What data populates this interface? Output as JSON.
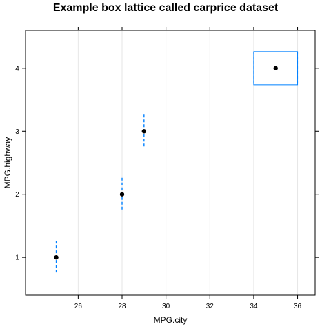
{
  "chart_data": {
    "type": "box",
    "title": "Example box lattice called carprice dataset",
    "xlabel": "MPG.city",
    "ylabel": "MPG.highway",
    "xlim": [
      23.6,
      36.8
    ],
    "ylim": [
      0.4,
      4.6
    ],
    "x_ticks": [
      26,
      28,
      30,
      32,
      34,
      36
    ],
    "y_ticks": [
      1,
      2,
      3,
      4
    ],
    "grid": "vertical",
    "box_color": "#0080ff",
    "median_color": "#000000",
    "grid_color": "#e6e6e6",
    "series": [
      {
        "y": 1,
        "min": 25,
        "q1": 25,
        "median": 25,
        "q3": 25,
        "max": 25
      },
      {
        "y": 2,
        "min": 28,
        "q1": 28,
        "median": 28,
        "q3": 28,
        "max": 28
      },
      {
        "y": 3,
        "min": 29,
        "q1": 29,
        "median": 29,
        "q3": 29,
        "max": 29
      },
      {
        "y": 4,
        "min": 34,
        "q1": 34,
        "median": 35,
        "q3": 36,
        "max": 36
      }
    ]
  }
}
